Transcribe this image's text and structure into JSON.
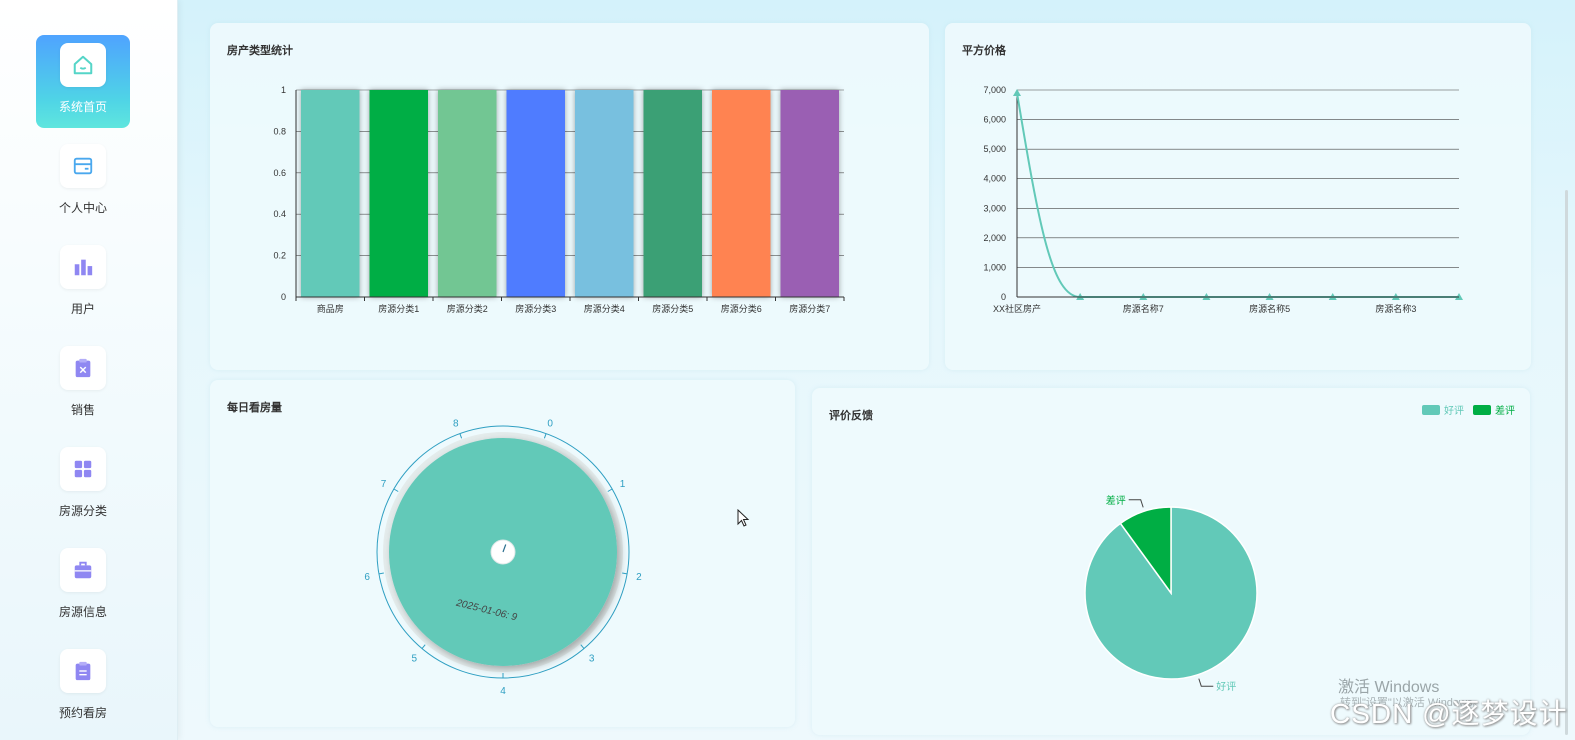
{
  "sidebar": {
    "items": [
      {
        "label": "系统首页",
        "icon": "home-icon",
        "active": true
      },
      {
        "label": "个人中心",
        "icon": "id-card-icon",
        "active": false
      },
      {
        "label": "用户",
        "icon": "bar-chart-icon",
        "active": false
      },
      {
        "label": "销售",
        "icon": "clipboard-x-icon",
        "active": false
      },
      {
        "label": "房源分类",
        "icon": "grid-icon",
        "active": false
      },
      {
        "label": "房源信息",
        "icon": "briefcase-icon",
        "active": false
      },
      {
        "label": "预约看房",
        "icon": "clipboard-list-icon",
        "active": false
      }
    ]
  },
  "cards": {
    "bar_title": "房产类型统计",
    "line_title": "平方价格",
    "gauge_title": "每日看房量",
    "pie_title": "评价反馈"
  },
  "chart_data": [
    {
      "type": "bar",
      "title": "房产类型统计",
      "categories": [
        "商品房",
        "房源分类1",
        "房源分类2",
        "房源分类3",
        "房源分类4",
        "房源分类5",
        "房源分类6",
        "房源分类7"
      ],
      "values": [
        1,
        1,
        1,
        1,
        1,
        1,
        1,
        1
      ],
      "colors": [
        "#62c9b8",
        "#00ae44",
        "#72c693",
        "#507cff",
        "#78c0df",
        "#3aa074",
        "#ff8351",
        "#9a5fb3"
      ],
      "ylim": [
        0,
        1
      ],
      "yticks": [
        "0",
        "0.2",
        "0.4",
        "0.6",
        "0.8",
        "1"
      ],
      "grid": true
    },
    {
      "type": "line",
      "title": "平方价格",
      "x": [
        "XX社区房产",
        "",
        "房源名称7",
        "",
        "房源名称5",
        "",
        "房源名称3",
        ""
      ],
      "x_labels_shown": [
        "XX社区房产",
        "房源名称7",
        "房源名称5",
        "房源名称3"
      ],
      "values": [
        6900,
        0,
        0,
        0,
        0,
        0,
        0,
        0
      ],
      "ylim": [
        0,
        7000
      ],
      "yticks": [
        "0",
        "1,000",
        "2,000",
        "3,000",
        "4,000",
        "5,000",
        "6,000",
        "7,000"
      ],
      "color": "#62c9b8",
      "grid": true
    },
    {
      "type": "gauge",
      "title": "每日看房量",
      "min": 0,
      "max": 9,
      "ticks": [
        "0",
        "1",
        "2",
        "3",
        "4",
        "5",
        "6",
        "7",
        "8"
      ],
      "value": 9,
      "detail": "2025-01-06: 9",
      "color": "#62c9b8",
      "axis_color": "#2f9fc2"
    },
    {
      "type": "pie",
      "title": "评价反馈",
      "slices": [
        {
          "name": "好评",
          "value": 90,
          "color": "#62c9b8"
        },
        {
          "name": "差评",
          "value": 10,
          "color": "#00ae44"
        }
      ],
      "legend": [
        "好评",
        "差评"
      ],
      "legend_position": "top-right"
    }
  ],
  "watermark": {
    "line1": "激活 Windows",
    "line2": "转到\"设置\"以激活 Windows。",
    "csdn": "CSDN @逐梦设计"
  }
}
